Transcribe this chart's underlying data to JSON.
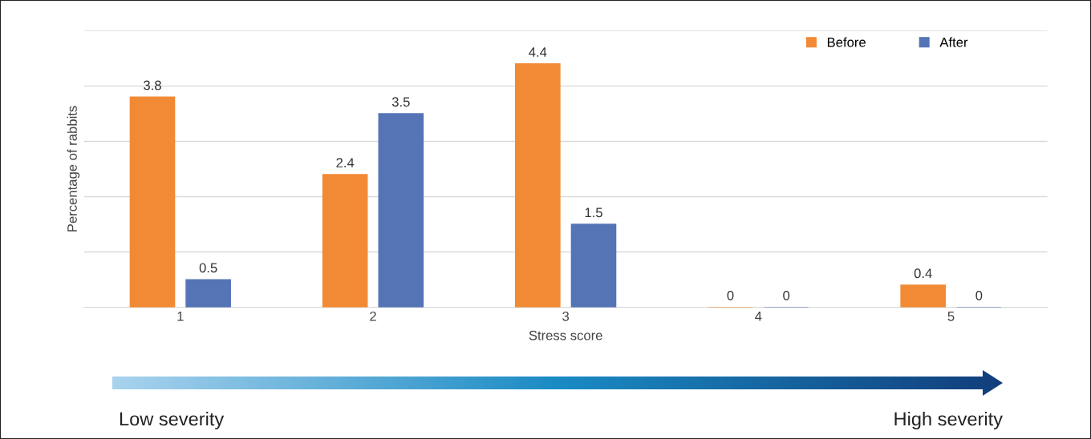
{
  "chart_data": {
    "type": "bar",
    "xlabel": "Stress score",
    "ylabel": "Percentage of rabbits",
    "categories": [
      "1",
      "2",
      "3",
      "4",
      "5"
    ],
    "series": [
      {
        "name": "Before",
        "color": "#f28a35",
        "values": [
          3.8,
          2.4,
          4.4,
          0,
          0.4
        ]
      },
      {
        "name": "After",
        "color": "#5574b5",
        "values": [
          0.5,
          3.5,
          1.5,
          0,
          0
        ]
      }
    ],
    "ylim": [
      0,
      5
    ],
    "yticks": [
      {
        "value": 0,
        "label": null
      },
      {
        "value": 1,
        "label": null
      },
      {
        "value": 2,
        "label": null
      },
      {
        "value": 3,
        "label": null
      },
      {
        "value": 4,
        "label": null
      },
      {
        "value": 5,
        "label": null
      }
    ],
    "tick_labels": "x",
    "grid": "y",
    "legend": "top right",
    "data_labels": true,
    "annotations": [
      "Low severity",
      "High severity"
    ]
  }
}
